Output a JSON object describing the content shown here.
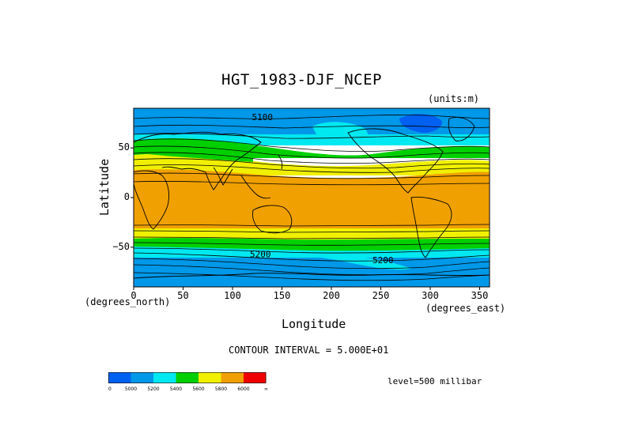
{
  "title": "HGT_1983-DJF_NCEP",
  "units": "(units:m)",
  "axes": {
    "x": {
      "label": "Longitude",
      "units_label": "(degrees_east)",
      "range": [
        0,
        360
      ],
      "ticks": [
        0,
        50,
        100,
        150,
        200,
        250,
        300,
        350
      ]
    },
    "y": {
      "label": "Latitude",
      "units_label": "(degrees_north)",
      "range": [
        -90,
        90
      ],
      "ticks": [
        50,
        0,
        -50
      ],
      "tick_labels": [
        "50",
        "0",
        "−50"
      ]
    }
  },
  "contour_interval": "CONTOUR INTERVAL = 5.000E+01",
  "level": "level=500 millibar",
  "contour_labels": [
    {
      "text": "5100",
      "lon": 130,
      "lat": 78
    },
    {
      "text": "5200",
      "lon": 128,
      "lat": -60
    },
    {
      "text": "5200",
      "lon": 252,
      "lat": -66
    }
  ],
  "colorbar": {
    "colors": [
      "#0060f0",
      "#0098e8",
      "#00e8f0",
      "#00d000",
      "#f0f000",
      "#f0a000",
      "#f00000"
    ],
    "labels": [
      "0",
      "5000",
      "5200",
      "5400",
      "5600",
      "5800",
      "6000",
      "∞"
    ]
  },
  "chart_data": {
    "type": "heatmap",
    "variable": "HGT",
    "x": "Longitude",
    "y": "Latitude",
    "bands": [
      {
        "from_lat": 90,
        "to_lat": 58,
        "value_class": "5000-5200"
      },
      {
        "from_lat": 58,
        "to_lat": 50,
        "value_class": "5200-5400"
      },
      {
        "from_lat": 50,
        "to_lat": 42,
        "value_class": "5400-5600"
      },
      {
        "from_lat": 42,
        "to_lat": 30,
        "value_class": "5600-5800"
      },
      {
        "from_lat": 30,
        "to_lat": -30,
        "value_class": "5800-6000"
      },
      {
        "from_lat": -30,
        "to_lat": -42,
        "value_class": "5600-5800"
      },
      {
        "from_lat": -42,
        "to_lat": -50,
        "value_class": "5400-5600"
      },
      {
        "from_lat": -50,
        "to_lat": -58,
        "value_class": "5200-5400"
      },
      {
        "from_lat": -58,
        "to_lat": -90,
        "value_class": "5000-5200"
      }
    ]
  }
}
